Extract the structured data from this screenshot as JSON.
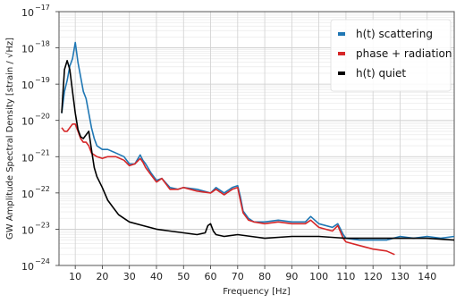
{
  "chart_data": {
    "type": "line",
    "title": "",
    "xlabel": "Frequency [Hz]",
    "ylabel": "GW Amplitude Spectral Density [strain / √Hz]",
    "xlim": [
      4,
      150
    ],
    "ylim_log10": [
      -24,
      -17
    ],
    "yscale": "log",
    "grid": true,
    "legend_position": "top-right",
    "x_ticks": [
      10,
      20,
      30,
      40,
      50,
      60,
      70,
      80,
      90,
      100,
      110,
      120,
      130,
      140
    ],
    "x_tick_labels": [
      "10",
      "20",
      "30",
      "40",
      "50",
      "60",
      "70",
      "80",
      "90",
      "100",
      "110",
      "120",
      "130",
      "140"
    ],
    "y_ticks_exponents": [
      -24,
      -23,
      -22,
      -21,
      -20,
      -19,
      -18,
      -17
    ],
    "y_tick_labels": [
      {
        "base": "10",
        "exp": "−24"
      },
      {
        "base": "10",
        "exp": "−23"
      },
      {
        "base": "10",
        "exp": "−22"
      },
      {
        "base": "10",
        "exp": "−21"
      },
      {
        "base": "10",
        "exp": "−20"
      },
      {
        "base": "10",
        "exp": "−19"
      },
      {
        "base": "10",
        "exp": "−18"
      },
      {
        "base": "10",
        "exp": "−17"
      }
    ],
    "series": [
      {
        "name": "h(t) scattering",
        "color": "#1f77b4",
        "x": [
          5,
          6,
          7,
          8,
          9,
          10,
          11,
          12,
          13,
          14,
          15,
          16,
          17,
          18,
          20,
          22,
          25,
          28,
          30,
          32,
          34,
          35,
          36,
          38,
          40,
          42,
          45,
          48,
          50,
          55,
          60,
          62,
          65,
          68,
          70,
          71,
          72,
          74,
          76,
          80,
          85,
          90,
          95,
          97,
          100,
          105,
          107,
          109,
          110,
          115,
          120,
          125,
          130,
          135,
          140,
          145,
          150
        ],
        "y": [
          -19.8,
          -19.2,
          -18.9,
          -18.5,
          -18.3,
          -17.85,
          -18.4,
          -18.8,
          -19.2,
          -19.4,
          -19.8,
          -20.2,
          -20.5,
          -20.7,
          -20.8,
          -20.8,
          -20.9,
          -21.0,
          -21.2,
          -21.2,
          -20.95,
          -21.1,
          -21.2,
          -21.45,
          -21.65,
          -21.6,
          -21.85,
          -21.9,
          -21.85,
          -21.9,
          -22.0,
          -21.85,
          -22.0,
          -21.85,
          -21.8,
          -22.1,
          -22.5,
          -22.7,
          -22.8,
          -22.8,
          -22.75,
          -22.8,
          -22.8,
          -22.65,
          -22.85,
          -22.95,
          -22.85,
          -23.15,
          -23.25,
          -23.3,
          -23.3,
          -23.3,
          -23.2,
          -23.25,
          -23.2,
          -23.25,
          -23.2
        ]
      },
      {
        "name": "phase + radiation",
        "color": "#d62728",
        "x": [
          5,
          6,
          7,
          8,
          9,
          10,
          11,
          12,
          13,
          14,
          15,
          16,
          17,
          18,
          20,
          22,
          25,
          28,
          30,
          32,
          34,
          35,
          36,
          38,
          40,
          42,
          45,
          48,
          50,
          55,
          60,
          62,
          65,
          68,
          70,
          71,
          72,
          74,
          76,
          80,
          85,
          90,
          95,
          97,
          100,
          105,
          107,
          109,
          110,
          115,
          120,
          125,
          128
        ],
        "y": [
          -20.2,
          -20.3,
          -20.3,
          -20.2,
          -20.1,
          -20.1,
          -20.3,
          -20.5,
          -20.6,
          -20.6,
          -20.7,
          -20.9,
          -20.95,
          -21.0,
          -21.05,
          -21.0,
          -21.0,
          -21.1,
          -21.25,
          -21.2,
          -21.05,
          -21.15,
          -21.3,
          -21.5,
          -21.7,
          -21.6,
          -21.9,
          -21.9,
          -21.85,
          -21.95,
          -22.0,
          -21.9,
          -22.05,
          -21.9,
          -21.85,
          -22.2,
          -22.55,
          -22.75,
          -22.8,
          -22.85,
          -22.8,
          -22.85,
          -22.85,
          -22.75,
          -22.95,
          -23.05,
          -22.9,
          -23.25,
          -23.35,
          -23.45,
          -23.55,
          -23.6,
          -23.7
        ]
      },
      {
        "name": "h(t) quiet",
        "color": "#000000",
        "x": [
          5,
          6,
          7,
          8,
          9,
          10,
          11,
          12,
          13,
          14,
          15,
          16,
          17,
          18,
          19,
          20,
          22,
          24,
          26,
          28,
          30,
          35,
          40,
          45,
          50,
          55,
          58,
          59,
          60,
          61,
          62,
          65,
          70,
          75,
          80,
          90,
          100,
          110,
          120,
          130,
          140,
          150
        ],
        "y": [
          -19.8,
          -18.6,
          -18.35,
          -18.6,
          -19.2,
          -19.8,
          -20.25,
          -20.45,
          -20.5,
          -20.4,
          -20.3,
          -20.8,
          -21.3,
          -21.55,
          -21.7,
          -21.85,
          -22.2,
          -22.4,
          -22.6,
          -22.7,
          -22.8,
          -22.9,
          -23.0,
          -23.05,
          -23.1,
          -23.15,
          -23.1,
          -22.9,
          -22.85,
          -23.05,
          -23.15,
          -23.2,
          -23.15,
          -23.2,
          -23.25,
          -23.2,
          -23.2,
          -23.25,
          -23.25,
          -23.25,
          -23.25,
          -23.3
        ]
      }
    ]
  }
}
